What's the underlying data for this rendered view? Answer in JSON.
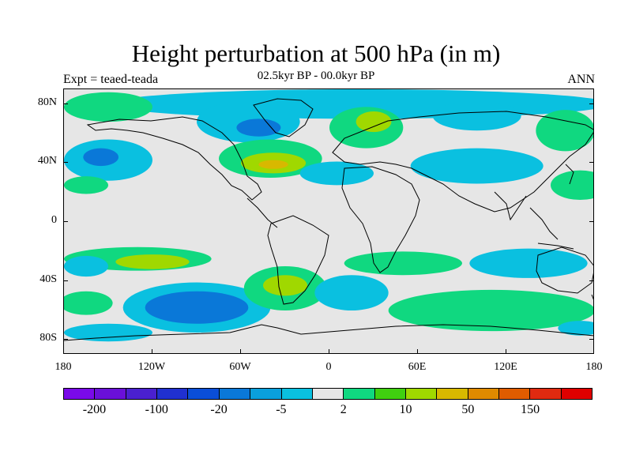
{
  "title": "Height perturbation at 500 hPa (in m)",
  "subtitle": "02.5kyr BP - 00.0kyr BP",
  "left_label": "Expt = teaed-teada",
  "right_label": "ANN",
  "lat_ticks": [
    {
      "value": 80,
      "label": "80N"
    },
    {
      "value": 40,
      "label": "40N"
    },
    {
      "value": 0,
      "label": "0"
    },
    {
      "value": -40,
      "label": "40S"
    },
    {
      "value": -80,
      "label": "80S"
    }
  ],
  "lon_ticks": [
    {
      "value": -180,
      "label": "180"
    },
    {
      "value": -120,
      "label": "120W"
    },
    {
      "value": -60,
      "label": "60W"
    },
    {
      "value": 0,
      "label": "0"
    },
    {
      "value": 60,
      "label": "60E"
    },
    {
      "value": 120,
      "label": "120E"
    },
    {
      "value": 180,
      "label": "180"
    }
  ],
  "colorbar": {
    "colors": [
      "#7a0ae8",
      "#6a10d8",
      "#4a20d0",
      "#2030d0",
      "#0a4ed8",
      "#0a78d8",
      "#0aa0dc",
      "#0ac0e0",
      "#e6e6e6",
      "#10d880",
      "#40d010",
      "#a0d800",
      "#d8b800",
      "#e08a00",
      "#e05c00",
      "#e02a10",
      "#e00000"
    ],
    "labels": [
      {
        "boundary": 1,
        "text": "-200"
      },
      {
        "boundary": 3,
        "text": "-100"
      },
      {
        "boundary": 5,
        "text": "-20"
      },
      {
        "boundary": 7,
        "text": "-5"
      },
      {
        "boundary": 9,
        "text": "2"
      },
      {
        "boundary": 11,
        "text": "10"
      },
      {
        "boundary": 13,
        "text": "50"
      },
      {
        "boundary": 15,
        "text": "150"
      }
    ]
  },
  "chart_data": {
    "type": "heatmap",
    "title": "Height perturbation at 500 hPa (in m)",
    "subtitle": "02.5kyr BP - 00.0kyr BP",
    "xlim": [
      -180,
      180
    ],
    "ylim": [
      -90,
      90
    ],
    "regions": [
      {
        "lon": 20,
        "lat": 80,
        "rlon": 170,
        "rlat": 10,
        "level": -5
      },
      {
        "lon": -150,
        "lat": 78,
        "rlon": 30,
        "rlat": 10,
        "level": 2
      },
      {
        "lon": -55,
        "lat": 68,
        "rlon": 35,
        "rlat": 14,
        "level": -5
      },
      {
        "lon": -48,
        "lat": 64,
        "rlon": 15,
        "rlat": 6,
        "level": -20
      },
      {
        "lon": 25,
        "lat": 64,
        "rlon": 25,
        "rlat": 14,
        "level": 2
      },
      {
        "lon": 30,
        "lat": 68,
        "rlon": 12,
        "rlat": 7,
        "level": 10
      },
      {
        "lon": 100,
        "lat": 72,
        "rlon": 30,
        "rlat": 10,
        "level": -5
      },
      {
        "lon": 160,
        "lat": 62,
        "rlon": 20,
        "rlat": 14,
        "level": 2
      },
      {
        "lon": -150,
        "lat": 42,
        "rlon": 30,
        "rlat": 14,
        "level": -5
      },
      {
        "lon": -155,
        "lat": 44,
        "rlon": 12,
        "rlat": 6,
        "level": -20
      },
      {
        "lon": -40,
        "lat": 43,
        "rlon": 35,
        "rlat": 13,
        "level": 2
      },
      {
        "lon": -38,
        "lat": 40,
        "rlon": 22,
        "rlat": 7,
        "level": 10
      },
      {
        "lon": -38,
        "lat": 39,
        "rlon": 10,
        "rlat": 3,
        "level": 50
      },
      {
        "lon": 5,
        "lat": 33,
        "rlon": 25,
        "rlat": 8,
        "level": -5
      },
      {
        "lon": 100,
        "lat": 38,
        "rlon": 45,
        "rlat": 12,
        "level": -5
      },
      {
        "lon": 170,
        "lat": 25,
        "rlon": 20,
        "rlat": 10,
        "level": 2
      },
      {
        "lon": -165,
        "lat": 25,
        "rlon": 15,
        "rlat": 6,
        "level": 2
      },
      {
        "lon": -130,
        "lat": -25,
        "rlon": 50,
        "rlat": 8,
        "level": 2
      },
      {
        "lon": -120,
        "lat": -27,
        "rlon": 25,
        "rlat": 5,
        "level": 10
      },
      {
        "lon": 50,
        "lat": -28,
        "rlon": 40,
        "rlat": 8,
        "level": 2
      },
      {
        "lon": 135,
        "lat": -28,
        "rlon": 40,
        "rlat": 10,
        "level": -5
      },
      {
        "lon": -90,
        "lat": -58,
        "rlon": 50,
        "rlat": 17,
        "level": -5
      },
      {
        "lon": -90,
        "lat": -58,
        "rlon": 35,
        "rlat": 11,
        "level": -20
      },
      {
        "lon": -30,
        "lat": -45,
        "rlon": 28,
        "rlat": 15,
        "level": 2
      },
      {
        "lon": -30,
        "lat": -43,
        "rlon": 15,
        "rlat": 7,
        "level": 10
      },
      {
        "lon": 15,
        "lat": -48,
        "rlon": 25,
        "rlat": 12,
        "level": -5
      },
      {
        "lon": 110,
        "lat": -60,
        "rlon": 70,
        "rlat": 14,
        "level": 2
      },
      {
        "lon": -165,
        "lat": -55,
        "rlon": 18,
        "rlat": 8,
        "level": 2
      },
      {
        "lon": -165,
        "lat": -30,
        "rlon": 15,
        "rlat": 7,
        "level": -5
      },
      {
        "lon": -150,
        "lat": -75,
        "rlon": 30,
        "rlat": 6,
        "level": -5
      },
      {
        "lon": 170,
        "lat": -72,
        "rlon": 15,
        "rlat": 5,
        "level": -5
      }
    ]
  }
}
